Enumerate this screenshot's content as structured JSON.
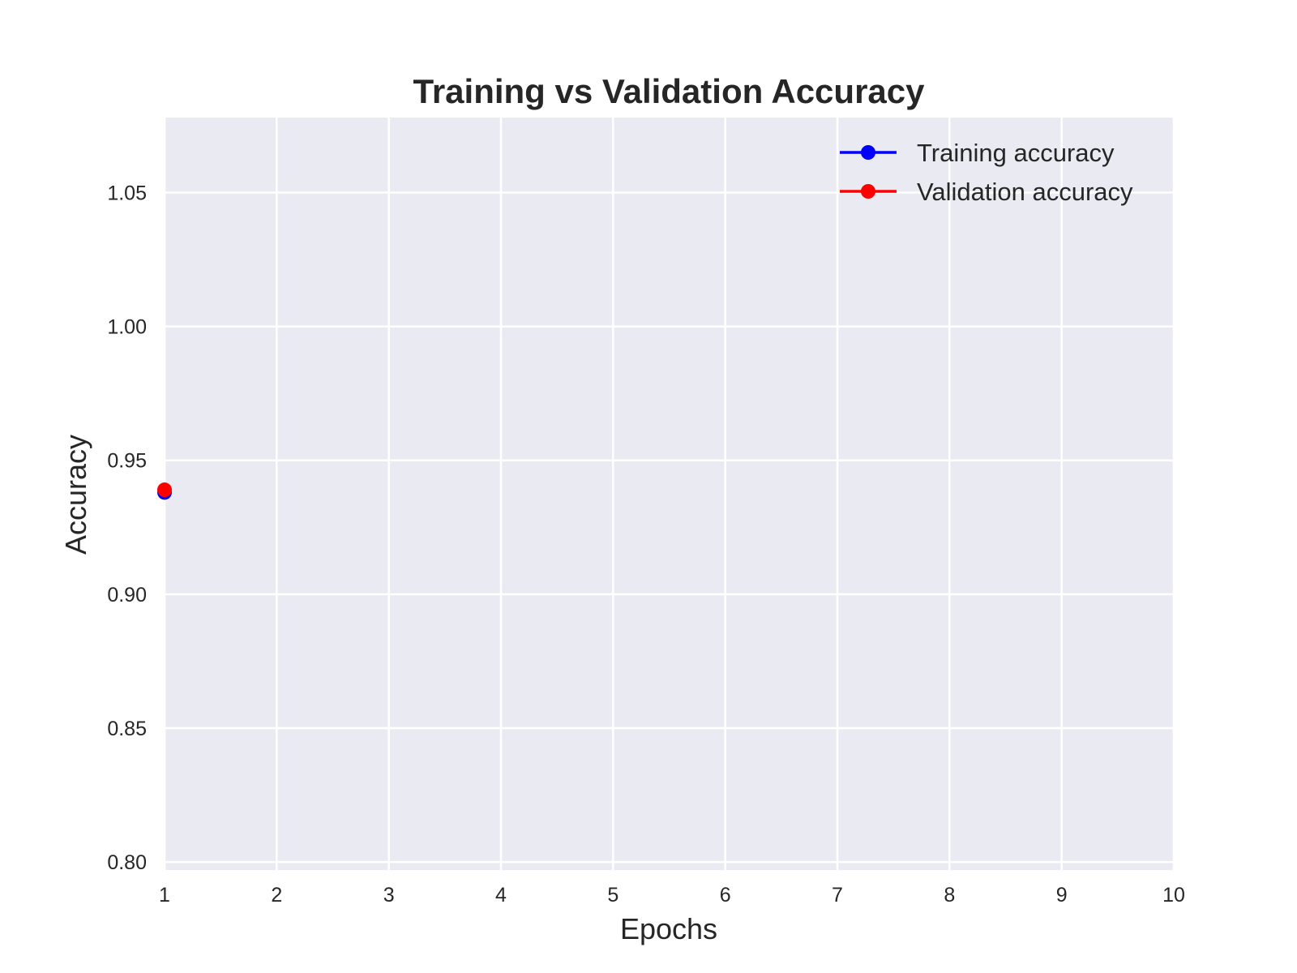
{
  "chart_data": {
    "type": "line",
    "title": "Training vs Validation Accuracy",
    "xlabel": "Epochs",
    "ylabel": "Accuracy",
    "xlim": [
      1,
      10
    ],
    "ylim": [
      0.797,
      1.078
    ],
    "x_ticks": [
      "1",
      "2",
      "3",
      "4",
      "5",
      "6",
      "7",
      "8",
      "9",
      "10"
    ],
    "y_ticks": [
      "0.80",
      "0.85",
      "0.90",
      "0.95",
      "1.00",
      "1.05"
    ],
    "grid": true,
    "legend_position": "top-right",
    "series": [
      {
        "name": "Training accuracy",
        "color": "#0000ff",
        "x": [
          1
        ],
        "y": [
          0.938
        ]
      },
      {
        "name": "Validation accuracy",
        "color": "#ff0000",
        "x": [
          1
        ],
        "y": [
          0.939
        ]
      }
    ]
  }
}
